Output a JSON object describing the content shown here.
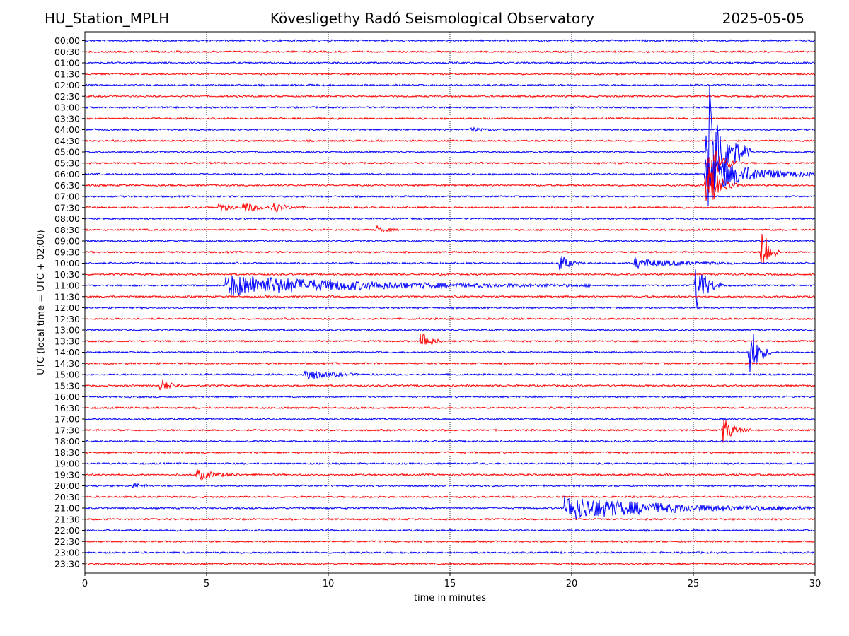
{
  "header": {
    "station": "HU_Station_MPLH",
    "observatory": "Kövesligethy Radó Seismological Observatory",
    "date": "2025-05-05"
  },
  "chart_data": {
    "type": "line",
    "xlabel": "time in minutes",
    "ylabel": "UTC (local time = UTC + 02:00)",
    "xlim": [
      0,
      30
    ],
    "xticks": [
      0,
      5,
      10,
      15,
      20,
      25,
      30
    ],
    "grid": "vertical dotted at x = 5, 10, 15, 20, 25",
    "row_labels": [
      "00:00",
      "00:30",
      "01:00",
      "01:30",
      "02:00",
      "02:30",
      "03:00",
      "03:30",
      "04:00",
      "04:30",
      "05:00",
      "05:30",
      "06:00",
      "06:30",
      "07:00",
      "07:30",
      "08:00",
      "08:30",
      "09:00",
      "09:30",
      "10:00",
      "10:30",
      "11:00",
      "11:30",
      "12:00",
      "12:30",
      "13:00",
      "13:30",
      "14:00",
      "14:30",
      "15:00",
      "15:30",
      "16:00",
      "16:30",
      "17:00",
      "17:30",
      "18:00",
      "18:30",
      "19:00",
      "19:30",
      "20:00",
      "20:30",
      "21:00",
      "21:30",
      "22:00",
      "22:30",
      "23:00",
      "23:30"
    ],
    "colors": {
      "hour_rows": "#0000ff",
      "half_hour_rows": "#ff0000"
    },
    "events": [
      {
        "row": "07:30",
        "x": 5.5,
        "amp": 0.5,
        "dur": 0.3
      },
      {
        "row": "07:30",
        "x": 6.5,
        "amp": 0.55,
        "dur": 0.5
      },
      {
        "row": "07:30",
        "x": 7.7,
        "amp": 0.5,
        "dur": 0.45
      },
      {
        "row": "08:30",
        "x": 12.0,
        "amp": 0.3,
        "dur": 0.3
      },
      {
        "row": "09:30",
        "x": 27.8,
        "amp": 3.0,
        "dur": 0.25
      },
      {
        "row": "10:00",
        "x": 19.5,
        "amp": 0.8,
        "dur": 0.35
      },
      {
        "row": "10:00",
        "x": 22.6,
        "amp": 0.45,
        "dur": 1.4
      },
      {
        "row": "11:00",
        "x": 5.8,
        "amp": 1.0,
        "dur": 5.0
      },
      {
        "row": "11:00",
        "x": 25.1,
        "amp": 2.3,
        "dur": 0.4
      },
      {
        "row": "13:30",
        "x": 13.8,
        "amp": 1.1,
        "dur": 0.3
      },
      {
        "row": "14:00",
        "x": 27.3,
        "amp": 3.0,
        "dur": 0.3
      },
      {
        "row": "15:00",
        "x": 9.0,
        "amp": 0.6,
        "dur": 0.8
      },
      {
        "row": "15:30",
        "x": 3.1,
        "amp": 0.75,
        "dur": 0.3
      },
      {
        "row": "17:30",
        "x": 26.2,
        "amp": 1.2,
        "dur": 0.4
      },
      {
        "row": "19:30",
        "x": 4.6,
        "amp": 0.5,
        "dur": 0.6
      },
      {
        "row": "20:00",
        "x": 2.0,
        "amp": 0.25,
        "dur": 0.3
      },
      {
        "row": "21:00",
        "x": 19.7,
        "amp": 1.1,
        "dur": 3.7
      },
      {
        "row": "04:00",
        "x": 15.8,
        "amp": 0.2,
        "dur": 0.5
      },
      {
        "row": "05:00",
        "x": 25.55,
        "amp": 7.5,
        "dur": 0.6
      },
      {
        "row": "05:30",
        "x": 25.6,
        "amp": 3.0,
        "dur": 0.4
      },
      {
        "row": "06:00",
        "x": 25.5,
        "amp": 1.8,
        "dur": 1.6
      },
      {
        "row": "06:30",
        "x": 25.5,
        "amp": 2.4,
        "dur": 0.5
      }
    ]
  }
}
